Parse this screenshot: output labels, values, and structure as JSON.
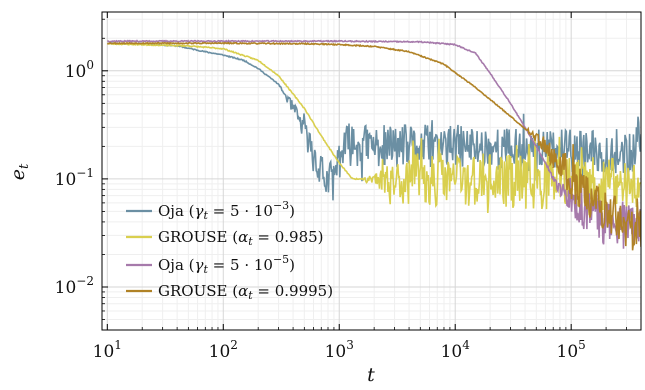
{
  "chart_data": {
    "type": "line",
    "title": "",
    "xlabel": "t",
    "ylabel": "e_t",
    "xscale": "log",
    "yscale": "log",
    "xlim": [
      9,
      400000
    ],
    "ylim": [
      0.004,
      3.5
    ],
    "grid": true,
    "x_ticks": [
      {
        "value": 10,
        "base": "10",
        "exp": "1"
      },
      {
        "value": 100,
        "base": "10",
        "exp": "2"
      },
      {
        "value": 1000,
        "base": "10",
        "exp": "3"
      },
      {
        "value": 10000,
        "base": "10",
        "exp": "4"
      },
      {
        "value": 100000,
        "base": "10",
        "exp": "5"
      }
    ],
    "y_ticks": [
      {
        "value": 1,
        "base": "10",
        "exp": "0"
      },
      {
        "value": 0.1,
        "base": "10",
        "exp": "−1"
      },
      {
        "value": 0.01,
        "base": "10",
        "exp": "−2"
      }
    ],
    "legend_position": "bottom-left",
    "series": [
      {
        "name": "Oja (γt = 5 · 10−3)",
        "color": "#6b8fa3",
        "noise": {
          "start": 300,
          "amp": 0.2,
          "seed": 11
        },
        "points": [
          [
            10,
            1.8
          ],
          [
            20,
            1.78
          ],
          [
            40,
            1.7
          ],
          [
            70,
            1.5
          ],
          [
            100,
            1.4
          ],
          [
            150,
            1.25
          ],
          [
            200,
            1.05
          ],
          [
            300,
            0.75
          ],
          [
            400,
            0.45
          ],
          [
            500,
            0.28
          ],
          [
            600,
            0.17
          ],
          [
            700,
            0.12
          ],
          [
            800,
            0.09
          ],
          [
            900,
            0.1
          ],
          [
            1000,
            0.16
          ],
          [
            1200,
            0.21
          ],
          [
            2000,
            0.2
          ],
          [
            5000,
            0.2
          ],
          [
            10000,
            0.2
          ],
          [
            100000,
            0.18
          ],
          [
            400000,
            0.17
          ]
        ]
      },
      {
        "name": "GROUSE (αt = 0.985)",
        "color": "#d9cf4e",
        "noise": {
          "start": 1500,
          "amp": 0.25,
          "seed": 23
        },
        "points": [
          [
            10,
            1.78
          ],
          [
            50,
            1.7
          ],
          [
            100,
            1.6
          ],
          [
            200,
            1.25
          ],
          [
            300,
            0.9
          ],
          [
            500,
            0.45
          ],
          [
            700,
            0.25
          ],
          [
            1000,
            0.14
          ],
          [
            1300,
            0.1
          ],
          [
            2000,
            0.1
          ],
          [
            4000,
            0.1
          ],
          [
            10000,
            0.1
          ],
          [
            100000,
            0.09
          ],
          [
            400000,
            0.09
          ]
        ]
      },
      {
        "name": "Oja (γt = 5 · 10−5)",
        "color": "#a67aab",
        "noise": {
          "start": 60000,
          "amp": 0.22,
          "seed": 37
        },
        "points": [
          [
            10,
            1.88
          ],
          [
            1000,
            1.88
          ],
          [
            5000,
            1.85
          ],
          [
            10000,
            1.75
          ],
          [
            15000,
            1.45
          ],
          [
            20000,
            0.95
          ],
          [
            30000,
            0.5
          ],
          [
            50000,
            0.2
          ],
          [
            80000,
            0.08
          ],
          [
            120000,
            0.05
          ],
          [
            200000,
            0.04
          ],
          [
            400000,
            0.035
          ]
        ]
      },
      {
        "name": "GROUSE (αt = 0.9995)",
        "color": "#b08226",
        "noise": {
          "start": 40000,
          "amp": 0.2,
          "seed": 53
        },
        "points": [
          [
            10,
            1.8
          ],
          [
            100,
            1.8
          ],
          [
            500,
            1.78
          ],
          [
            1000,
            1.75
          ],
          [
            2000,
            1.68
          ],
          [
            4000,
            1.5
          ],
          [
            8000,
            1.15
          ],
          [
            15000,
            0.7
          ],
          [
            30000,
            0.38
          ],
          [
            60000,
            0.2
          ],
          [
            100000,
            0.1
          ],
          [
            200000,
            0.05
          ],
          [
            400000,
            0.03
          ]
        ]
      }
    ]
  },
  "legend": {
    "items": [
      {
        "text": "Oja (",
        "var": "γ",
        "sub": "t",
        "rest": " = 5 · 10",
        "exp": "−3",
        "close": ")"
      },
      {
        "text": "GROUSE (",
        "var": "α",
        "sub": "t",
        "rest": " = 0.985",
        "exp": "",
        "close": ")"
      },
      {
        "text": "Oja (",
        "var": "γ",
        "sub": "t",
        "rest": " = 5 · 10",
        "exp": "−5",
        "close": ")"
      },
      {
        "text": "GROUSE (",
        "var": "α",
        "sub": "t",
        "rest": " = 0.9995",
        "exp": "",
        "close": ")"
      }
    ]
  },
  "axes": {
    "xlabel": "t",
    "ylabel_main": "e",
    "ylabel_sub": "t"
  }
}
